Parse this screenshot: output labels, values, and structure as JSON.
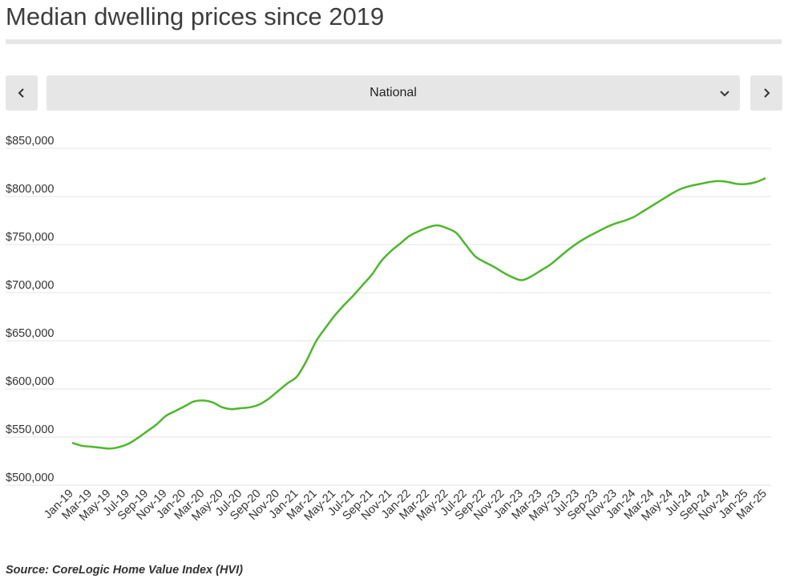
{
  "header": {
    "title": "Median dwelling prices since 2019"
  },
  "selector": {
    "value": "National",
    "prev_icon": "chevron-left-icon",
    "next_icon": "chevron-right-icon",
    "dropdown_icon": "chevron-down-icon"
  },
  "footer": {
    "source": "Source: CoreLogic Home Value Index (HVI)"
  },
  "chart_data": {
    "type": "line",
    "title": "",
    "xlabel": "",
    "ylabel": "",
    "ylim": [
      500000,
      850000
    ],
    "y_ticks": [
      500000,
      550000,
      600000,
      650000,
      700000,
      750000,
      800000,
      850000
    ],
    "y_tick_labels": [
      "$500,000",
      "$550,000",
      "$600,000",
      "$650,000",
      "$700,000",
      "$750,000",
      "$800,000",
      "$850,000"
    ],
    "x_tick_labels": [
      "Jan-19",
      "Mar-19",
      "May-19",
      "Jul-19",
      "Sep-19",
      "Nov-19",
      "Jan-20",
      "Mar-20",
      "May-20",
      "Jul-20",
      "Sep-20",
      "Nov-20",
      "Jan-21",
      "Mar-21",
      "May-21",
      "Jul-21",
      "Sep-21",
      "Nov-21",
      "Jan-22",
      "Mar-22",
      "May-22",
      "Jul-22",
      "Sep-22",
      "Nov-22",
      "Jan-23",
      "Mar-23",
      "May-23",
      "Jul-23",
      "Sep-23",
      "Nov-23",
      "Jan-24",
      "Mar-24",
      "May-24",
      "Jul-24",
      "Sep-24",
      "Nov-24",
      "Jan-25",
      "Mar-25"
    ],
    "grid": true,
    "line_color": "#4cb82a",
    "categories": [
      "Jan-19",
      "Feb-19",
      "Mar-19",
      "Apr-19",
      "May-19",
      "Jun-19",
      "Jul-19",
      "Aug-19",
      "Sep-19",
      "Oct-19",
      "Nov-19",
      "Dec-19",
      "Jan-20",
      "Feb-20",
      "Mar-20",
      "Apr-20",
      "May-20",
      "Jun-20",
      "Jul-20",
      "Aug-20",
      "Sep-20",
      "Oct-20",
      "Nov-20",
      "Dec-20",
      "Jan-21",
      "Feb-21",
      "Mar-21",
      "Apr-21",
      "May-21",
      "Jun-21",
      "Jul-21",
      "Aug-21",
      "Sep-21",
      "Oct-21",
      "Nov-21",
      "Dec-21",
      "Jan-22",
      "Feb-22",
      "Mar-22",
      "Apr-22",
      "May-22",
      "Jun-22",
      "Jul-22",
      "Aug-22",
      "Sep-22",
      "Oct-22",
      "Nov-22",
      "Dec-22",
      "Jan-23",
      "Feb-23",
      "Mar-23",
      "Apr-23",
      "May-23",
      "Jun-23",
      "Jul-23",
      "Aug-23",
      "Sep-23",
      "Oct-23",
      "Nov-23",
      "Dec-23",
      "Jan-24",
      "Feb-24",
      "Mar-24",
      "Apr-24",
      "May-24",
      "Jun-24",
      "Jul-24",
      "Aug-24",
      "Sep-24",
      "Oct-24",
      "Nov-24",
      "Dec-24",
      "Jan-25",
      "Feb-25",
      "Mar-25"
    ],
    "series": [
      {
        "values": [
          544000,
          541000,
          540000,
          539000,
          538000,
          539500,
          543000,
          549000,
          556000,
          563000,
          572000,
          577000,
          582000,
          587000,
          588000,
          586000,
          581000,
          579000,
          580000,
          581000,
          584000,
          590000,
          598000,
          606000,
          613000,
          629000,
          649000,
          663000,
          676000,
          687000,
          697000,
          708000,
          719000,
          733000,
          743000,
          751000,
          759000,
          764000,
          768000,
          770000,
          767000,
          762000,
          750000,
          738000,
          732000,
          727000,
          721000,
          716000,
          713000,
          717000,
          723000,
          729000,
          737000,
          745000,
          752000,
          758000,
          763000,
          768000,
          772000,
          775000,
          779000,
          785000,
          791000,
          797000,
          803000,
          808000,
          811000,
          813000,
          815000,
          816000,
          815000,
          813000,
          813000,
          815000,
          819000
        ]
      }
    ]
  }
}
